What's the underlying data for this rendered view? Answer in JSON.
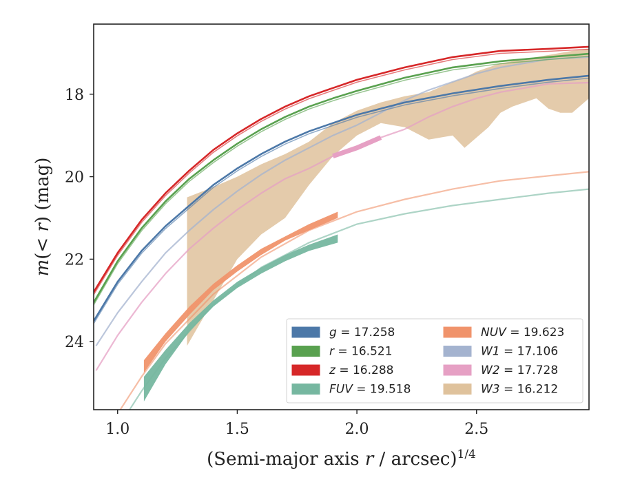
{
  "chart_data": {
    "type": "line",
    "title": "",
    "xlabel": "(Semi-major axis r / arcsec)",
    "xlabel_exponent": "1/4",
    "ylabel": "m(< r) (mag)",
    "xlim": [
      0.9,
      2.97
    ],
    "ylim": [
      25.65,
      16.3
    ],
    "y_inverted": true,
    "x_ticks": [
      1.0,
      1.5,
      2.0,
      2.5
    ],
    "x_tick_labels": [
      "1.0",
      "1.5",
      "2.0",
      "2.5"
    ],
    "y_ticks": [
      18,
      20,
      22,
      24
    ],
    "y_tick_labels": [
      "18",
      "20",
      "22",
      "24"
    ],
    "grid": false,
    "legend_position": "lower-right",
    "series": [
      {
        "name": "g = 17.258",
        "color": "#4c78a8",
        "style": "line",
        "x": [
          0.9,
          1.0,
          1.1,
          1.2,
          1.3,
          1.4,
          1.5,
          1.6,
          1.7,
          1.8,
          1.9,
          2.0,
          2.2,
          2.4,
          2.6,
          2.8,
          2.97
        ],
        "y": [
          23.5,
          22.55,
          21.8,
          21.2,
          20.7,
          20.2,
          19.8,
          19.45,
          19.15,
          18.9,
          18.7,
          18.5,
          18.2,
          17.98,
          17.8,
          17.65,
          17.55
        ],
        "x_model": [
          0.9,
          2.97
        ],
        "y_model": []
      },
      {
        "name": "r = 16.521",
        "color": "#59a14f",
        "style": "line",
        "x": [
          0.9,
          1.0,
          1.1,
          1.2,
          1.3,
          1.4,
          1.5,
          1.6,
          1.7,
          1.8,
          1.9,
          2.0,
          2.2,
          2.4,
          2.6,
          2.8,
          2.97
        ],
        "y": [
          23.05,
          22.05,
          21.25,
          20.6,
          20.05,
          19.6,
          19.2,
          18.85,
          18.55,
          18.3,
          18.1,
          17.92,
          17.6,
          17.35,
          17.2,
          17.1,
          17.02
        ]
      },
      {
        "name": "z = 16.288",
        "color": "#d62728",
        "style": "line",
        "x": [
          0.9,
          1.0,
          1.1,
          1.2,
          1.3,
          1.4,
          1.5,
          1.6,
          1.7,
          1.8,
          1.9,
          2.0,
          2.2,
          2.4,
          2.6,
          2.8,
          2.97
        ],
        "y": [
          22.8,
          21.85,
          21.05,
          20.4,
          19.85,
          19.35,
          18.95,
          18.6,
          18.3,
          18.05,
          17.85,
          17.65,
          17.35,
          17.1,
          16.95,
          16.9,
          16.85
        ]
      },
      {
        "name": "FUV = 19.518",
        "color": "#76b7a0",
        "style": "band",
        "x": [
          1.11,
          1.2,
          1.3,
          1.4,
          1.5,
          1.6,
          1.7,
          1.8,
          1.92
        ],
        "y_low": [
          25.45,
          24.55,
          23.75,
          23.15,
          22.7,
          22.35,
          22.05,
          21.8,
          21.6
        ],
        "y_high": [
          24.85,
          24.2,
          23.55,
          23.0,
          22.55,
          22.2,
          21.9,
          21.65,
          21.4
        ],
        "model_x": [
          0.9,
          1.0,
          1.1,
          1.2,
          1.4,
          1.6,
          1.8,
          2.0,
          2.2,
          2.4,
          2.6,
          2.8,
          2.97
        ],
        "model_y": [
          27.2,
          26.1,
          25.2,
          24.4,
          23.1,
          22.2,
          21.6,
          21.15,
          20.9,
          20.7,
          20.55,
          20.4,
          20.3
        ]
      },
      {
        "name": "NUV = 19.623",
        "color": "#f0936b",
        "style": "band",
        "x": [
          1.11,
          1.2,
          1.3,
          1.4,
          1.5,
          1.6,
          1.7,
          1.8,
          1.92
        ],
        "y_low": [
          24.75,
          24.0,
          23.35,
          22.75,
          22.3,
          21.9,
          21.55,
          21.3,
          21.0
        ],
        "y_high": [
          24.45,
          23.8,
          23.15,
          22.6,
          22.15,
          21.75,
          21.45,
          21.15,
          20.85
        ],
        "model_x": [
          0.9,
          1.0,
          1.1,
          1.2,
          1.4,
          1.6,
          1.8,
          2.0,
          2.2,
          2.4,
          2.6,
          2.8,
          2.97
        ],
        "model_y": [
          26.8,
          25.75,
          24.85,
          24.05,
          22.85,
          21.95,
          21.3,
          20.85,
          20.55,
          20.3,
          20.1,
          19.98,
          19.88
        ]
      },
      {
        "name": "W1 = 17.106",
        "color": "#a4b3cf",
        "style": "line",
        "x": [
          0.91,
          1.0,
          1.1,
          1.2,
          1.3,
          1.4,
          1.5,
          1.6,
          1.7,
          1.8,
          1.9,
          2.0,
          2.1,
          2.2,
          2.3,
          2.4,
          2.5,
          2.6,
          2.7,
          2.8,
          2.97
        ],
        "y": [
          24.1,
          23.3,
          22.55,
          21.85,
          21.3,
          20.8,
          20.35,
          19.95,
          19.6,
          19.3,
          19.0,
          18.75,
          18.45,
          18.15,
          17.9,
          17.7,
          17.5,
          17.35,
          17.25,
          17.15,
          17.1
        ]
      },
      {
        "name": "W2 = 17.728",
        "color": "#e6a0c4",
        "style": "line",
        "x": [
          0.91,
          1.0,
          1.1,
          1.2,
          1.3,
          1.4,
          1.5,
          1.6,
          1.7,
          1.8,
          1.9,
          2.0,
          2.1,
          2.2,
          2.3,
          2.4,
          2.5,
          2.6,
          2.7,
          2.8,
          2.97
        ],
        "y": [
          24.7,
          23.85,
          23.05,
          22.35,
          21.75,
          21.25,
          20.8,
          20.4,
          20.05,
          19.8,
          19.5,
          19.3,
          19.05,
          18.85,
          18.55,
          18.3,
          18.1,
          17.95,
          17.85,
          17.75,
          17.72
        ],
        "bold_range": [
          1.85,
          2.1
        ]
      },
      {
        "name": "W3 = 16.212",
        "color": "#dfc29c",
        "style": "band",
        "x": [
          1.29,
          1.4,
          1.5,
          1.6,
          1.7,
          1.8,
          1.9,
          2.0,
          2.1,
          2.2,
          2.3,
          2.4,
          2.45,
          2.5,
          2.55,
          2.6,
          2.65,
          2.7,
          2.75,
          2.8,
          2.85,
          2.9,
          2.97
        ],
        "y_low": [
          24.1,
          23.0,
          22.0,
          21.4,
          21.0,
          20.2,
          19.5,
          19.0,
          18.7,
          18.8,
          19.1,
          19.0,
          19.3,
          19.05,
          18.8,
          18.45,
          18.3,
          18.2,
          18.1,
          18.35,
          18.45,
          18.45,
          18.1
        ],
        "y_high": [
          20.5,
          20.25,
          20.0,
          19.7,
          19.45,
          19.15,
          18.7,
          18.4,
          18.2,
          18.05,
          17.95,
          17.7,
          17.6,
          17.45,
          17.35,
          17.25,
          17.2,
          17.15,
          17.1,
          17.05,
          17.0,
          16.95,
          16.9
        ]
      }
    ]
  }
}
